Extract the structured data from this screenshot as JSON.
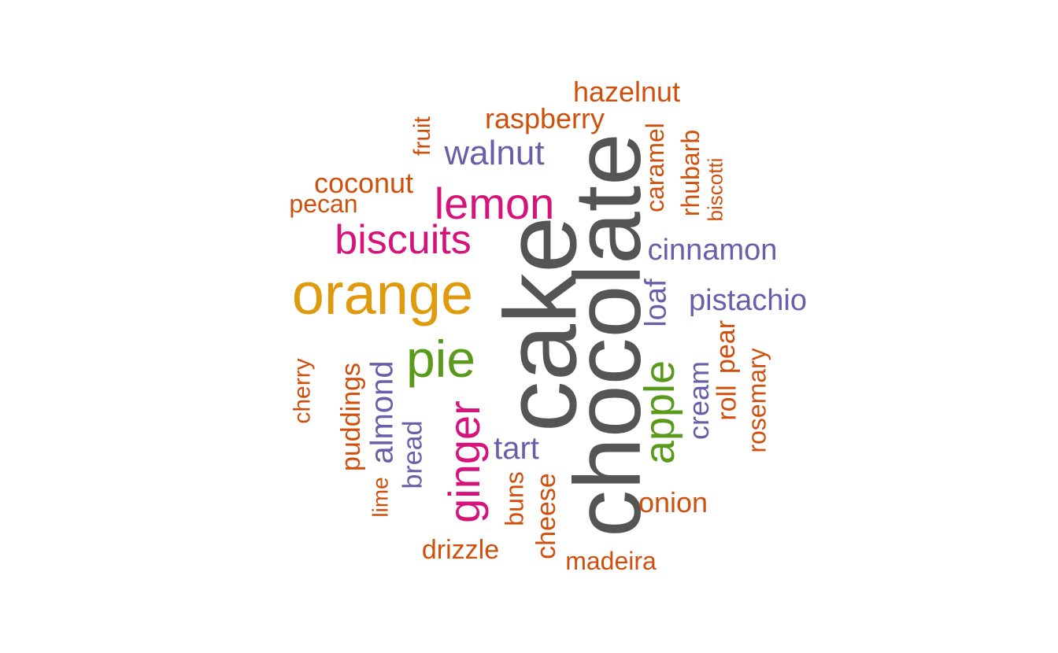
{
  "palette": {
    "dark_gray": "#555555",
    "gold": "#e09a0d",
    "magenta": "#d6137a",
    "green": "#5a9a1a",
    "purple": "#6a5ea8",
    "rust": "#cf4f0c"
  },
  "words": [
    {
      "text": "chocolate",
      "color": "dark_gray",
      "rotated": true
    },
    {
      "text": "cake",
      "color": "dark_gray",
      "rotated": true
    },
    {
      "text": "orange",
      "color": "gold",
      "rotated": false
    },
    {
      "text": "pie",
      "color": "green",
      "rotated": false
    },
    {
      "text": "lemon",
      "color": "magenta",
      "rotated": false
    },
    {
      "text": "biscuits",
      "color": "magenta",
      "rotated": false
    },
    {
      "text": "ginger",
      "color": "magenta",
      "rotated": true
    },
    {
      "text": "apple",
      "color": "green",
      "rotated": true
    },
    {
      "text": "walnut",
      "color": "purple",
      "rotated": false
    },
    {
      "text": "cinnamon",
      "color": "purple",
      "rotated": false
    },
    {
      "text": "pistachio",
      "color": "purple",
      "rotated": false
    },
    {
      "text": "loaf",
      "color": "purple",
      "rotated": true
    },
    {
      "text": "almond",
      "color": "purple",
      "rotated": true
    },
    {
      "text": "tart",
      "color": "purple",
      "rotated": false
    },
    {
      "text": "cream",
      "color": "purple",
      "rotated": true
    },
    {
      "text": "bread",
      "color": "purple",
      "rotated": true
    },
    {
      "text": "hazelnut",
      "color": "rust",
      "rotated": false
    },
    {
      "text": "raspberry",
      "color": "rust",
      "rotated": false
    },
    {
      "text": "coconut",
      "color": "rust",
      "rotated": false
    },
    {
      "text": "pecan",
      "color": "rust",
      "rotated": false
    },
    {
      "text": "fruit",
      "color": "rust",
      "rotated": true
    },
    {
      "text": "caramel",
      "color": "rust",
      "rotated": true
    },
    {
      "text": "rhubarb",
      "color": "rust",
      "rotated": true
    },
    {
      "text": "biscotti",
      "color": "rust",
      "rotated": true
    },
    {
      "text": "cherry",
      "color": "rust",
      "rotated": true
    },
    {
      "text": "puddings",
      "color": "rust",
      "rotated": true
    },
    {
      "text": "lime",
      "color": "rust",
      "rotated": true
    },
    {
      "text": "buns",
      "color": "rust",
      "rotated": true
    },
    {
      "text": "cheese",
      "color": "rust",
      "rotated": true
    },
    {
      "text": "drizzle",
      "color": "rust",
      "rotated": false
    },
    {
      "text": "madeira",
      "color": "rust",
      "rotated": false
    },
    {
      "text": "onion",
      "color": "rust",
      "rotated": false
    },
    {
      "text": "roll",
      "color": "rust",
      "rotated": true
    },
    {
      "text": "pear",
      "color": "rust",
      "rotated": true
    },
    {
      "text": "rosemary",
      "color": "rust",
      "rotated": true
    }
  ]
}
